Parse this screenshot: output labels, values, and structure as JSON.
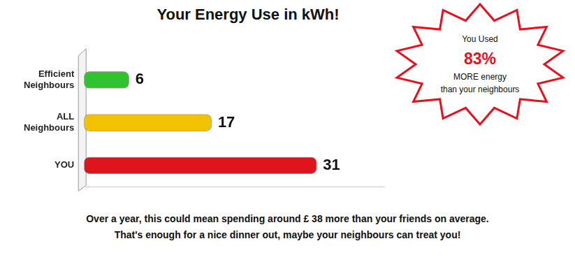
{
  "chart_data": {
    "type": "bar",
    "orientation": "horizontal",
    "title": "Your Energy Use in kWh!",
    "categories": [
      "Efficient Neighbours",
      "ALL Neighbours",
      "YOU"
    ],
    "values": [
      6,
      17,
      31
    ],
    "colors": [
      "#2fc42f",
      "#f2c200",
      "#e0141c"
    ],
    "xlim": [
      0,
      40
    ],
    "grid": false,
    "tick_labels": "y",
    "data_labels": true,
    "annotations": [
      "You Used",
      "83%",
      "MORE energy",
      "than your neighbours"
    ],
    "footer": [
      "Over a year, this could mean spending around £ 38 more than your friends on average.",
      "That's enough for a nice dinner out, maybe your neighbours can treat you!"
    ]
  }
}
